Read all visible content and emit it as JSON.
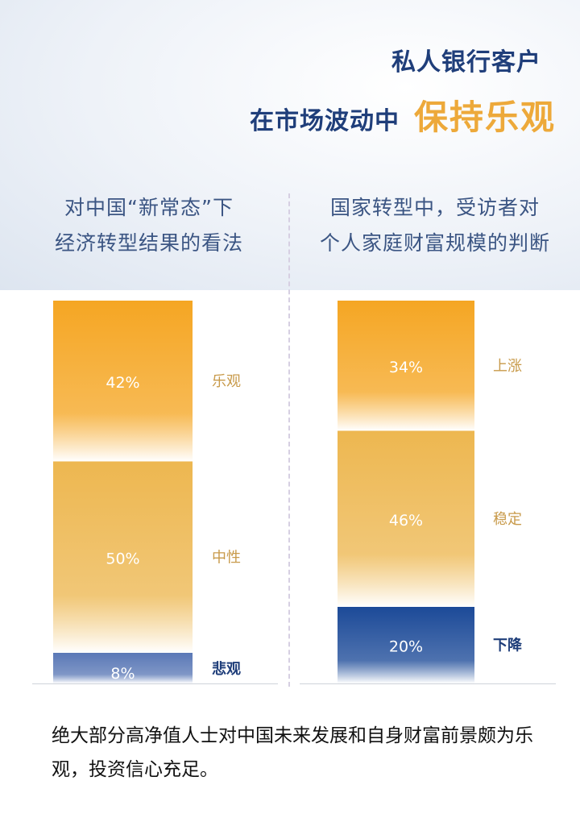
{
  "header": {
    "title_line1": "私人银行客户",
    "title_line2_prefix": "在市场波动中",
    "title_line2_highlight": "保持乐观"
  },
  "chart_data": [
    {
      "type": "bar",
      "stacked": true,
      "title": "对中国“新常态”下经济转型结果的看法",
      "title_lines": [
        "对中国“新常态”下",
        "经济转型结果的看法"
      ],
      "ylim": [
        0,
        100
      ],
      "series": [
        {
          "name": "乐观",
          "values": [
            42
          ],
          "label": "42%",
          "color": "#f5a623"
        },
        {
          "name": "中性",
          "values": [
            50
          ],
          "label": "50%",
          "color": "#edb750"
        },
        {
          "name": "悲观",
          "values": [
            8
          ],
          "label": "8%",
          "color": "#5a78b6"
        }
      ]
    },
    {
      "type": "bar",
      "stacked": true,
      "title": "国家转型中，受访者对个人家庭财富规模的判断",
      "title_lines": [
        "国家转型中，受访者对",
        "个人家庭财富规模的判断"
      ],
      "ylim": [
        0,
        100
      ],
      "series": [
        {
          "name": "上涨",
          "values": [
            34
          ],
          "label": "34%",
          "color": "#f5a623"
        },
        {
          "name": "稳定",
          "values": [
            46
          ],
          "label": "46%",
          "color": "#edb750"
        },
        {
          "name": "下降",
          "values": [
            20
          ],
          "label": "20%",
          "color": "#1c4a98"
        }
      ]
    }
  ],
  "footer": {
    "text": "绝大部分高净值人士对中国未来发展和自身财富前景颇为乐观，投资信心充足。",
    "mark": "。"
  },
  "colors": {
    "title_blue": "#1f3e7a",
    "highlight_gold": "#eda93a",
    "subtitle_blue": "#3b5583",
    "label_gold": "#c89a4a",
    "label_blue": "#1f3e7a"
  }
}
